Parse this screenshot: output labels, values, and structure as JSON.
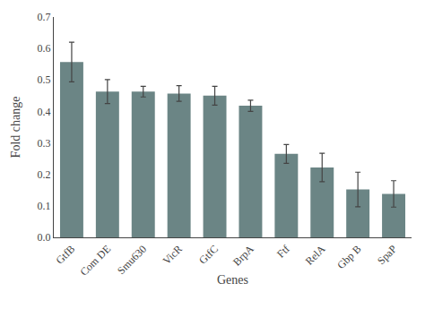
{
  "chart_data": {
    "type": "bar",
    "categories": [
      "GtfB",
      "Com DE",
      "Smu630",
      "VicR",
      "GtfC",
      "BrpA",
      "Ftf",
      "RelA",
      "Gbp B",
      "SpaP"
    ],
    "values": [
      0.557,
      0.463,
      0.463,
      0.457,
      0.45,
      0.418,
      0.265,
      0.222,
      0.152,
      0.138
    ],
    "errors": [
      0.063,
      0.038,
      0.017,
      0.025,
      0.03,
      0.018,
      0.03,
      0.045,
      0.055,
      0.042
    ],
    "color": "#6b8585",
    "xlabel": "Genes",
    "ylabel": "Fold change",
    "ylim": [
      0,
      0.7
    ],
    "yticks": [
      {
        "value": 0,
        "label": "0.0"
      },
      0.1,
      0.2,
      0.3,
      0.4,
      0.5,
      0.6,
      0.7
    ],
    "grid": false
  }
}
